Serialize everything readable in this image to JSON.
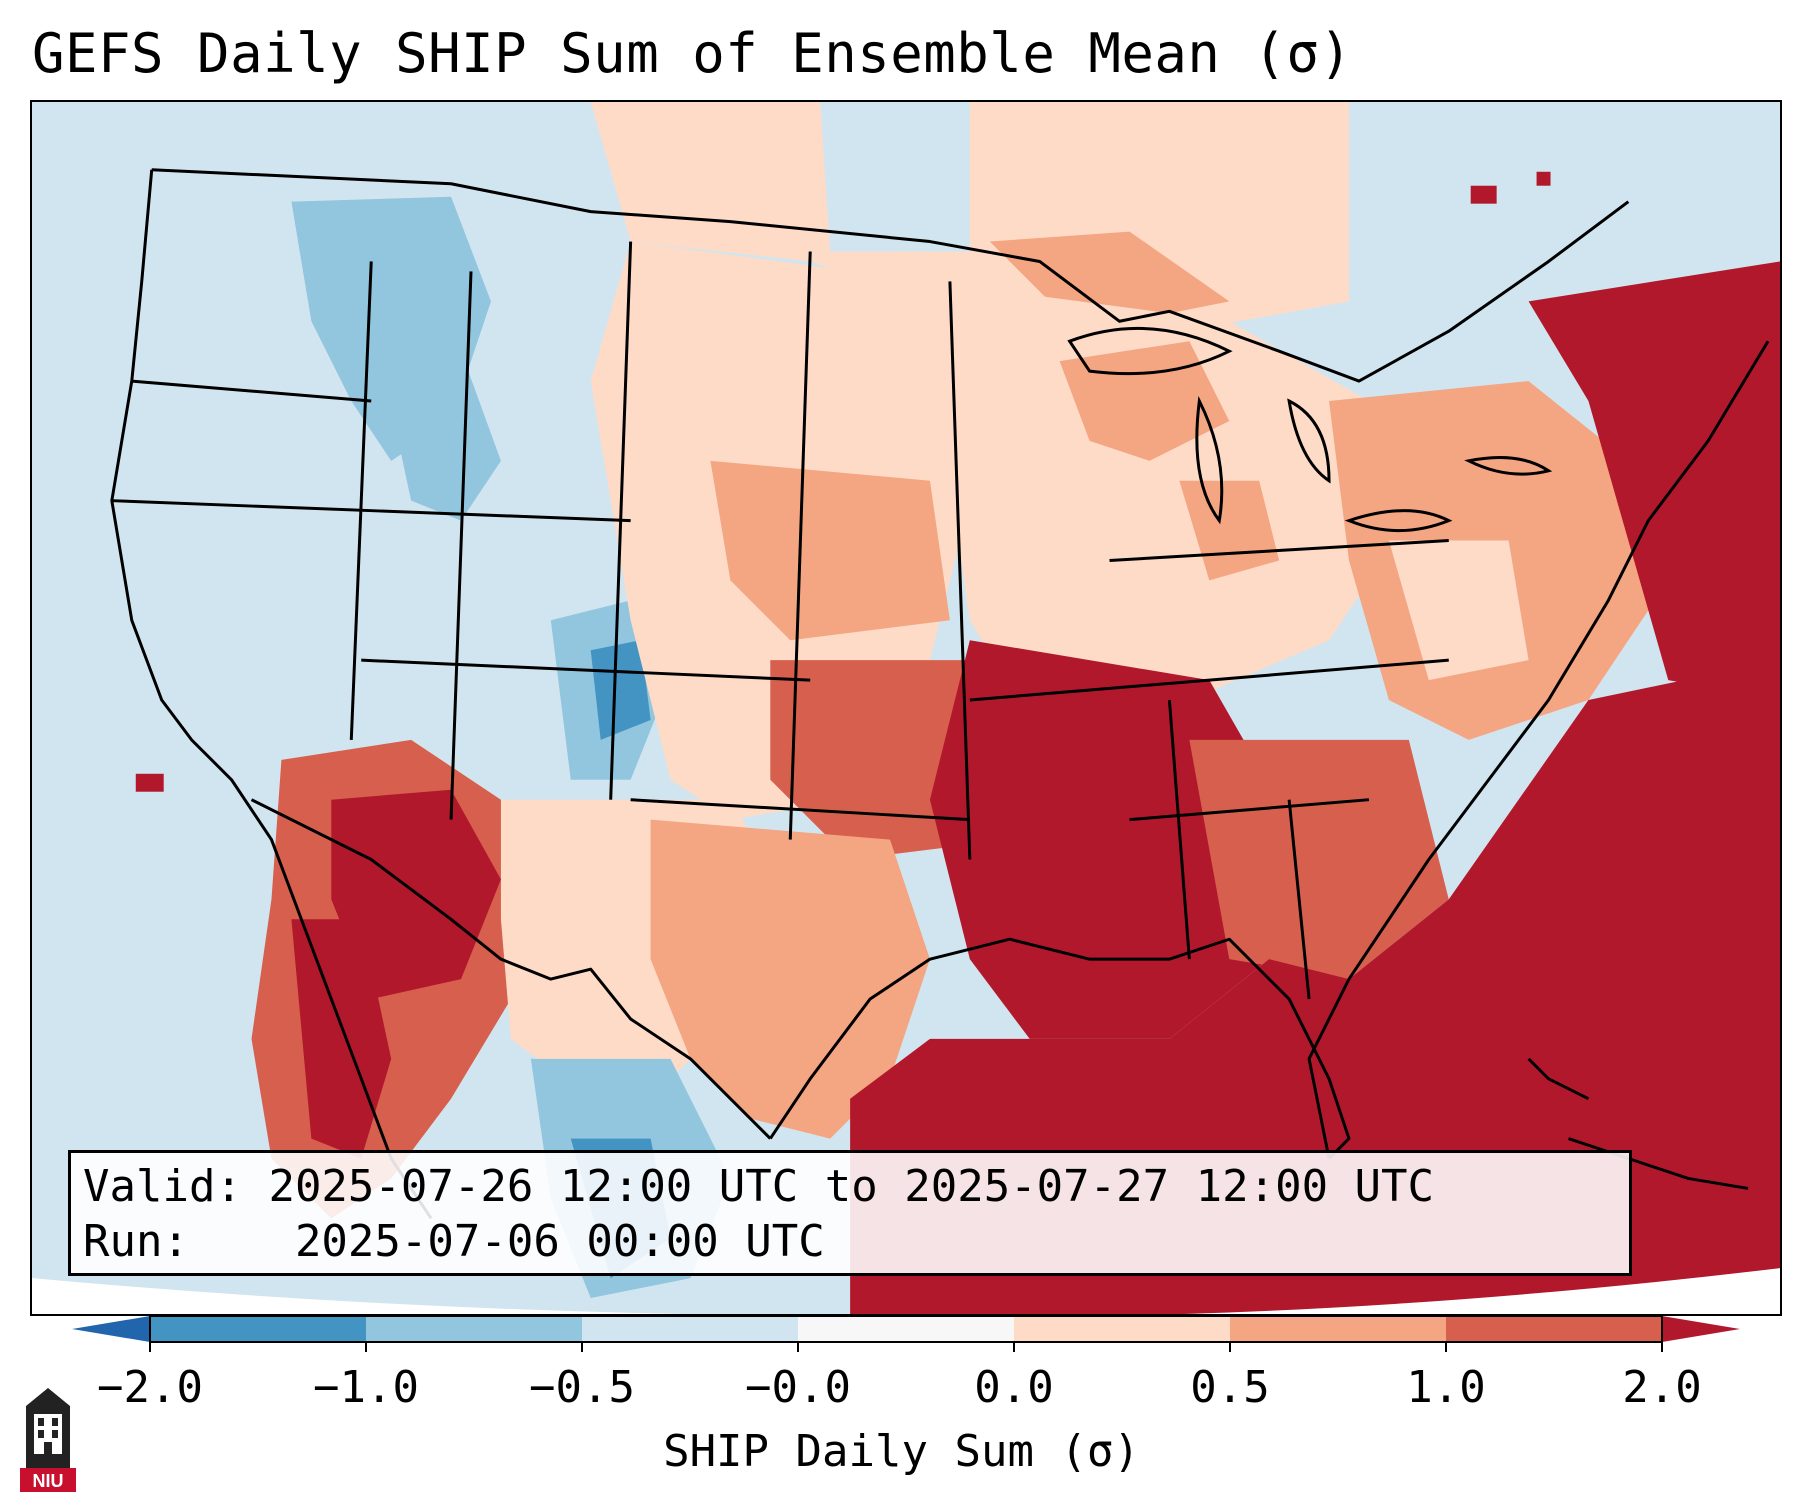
{
  "title": "GEFS Daily SHIP Sum of Ensemble Mean (σ)",
  "info": {
    "valid_label": "Valid:",
    "valid_text": "2025-07-26 12:00 UTC to 2025-07-27 12:00 UTC",
    "run_label": "Run:",
    "run_text": "2025-07-06 00:00 UTC"
  },
  "colorbar": {
    "label": "SHIP Daily Sum (σ)",
    "ticks": [
      "−2.0",
      "−1.0",
      "−0.5",
      "−0.0",
      "0.0",
      "0.5",
      "1.0",
      "2.0"
    ],
    "colors": {
      "below_min": "#2166ac",
      "bins": [
        "#4393c3",
        "#92c5de",
        "#d1e5f0",
        "#f7f7f7",
        "#fddbc7",
        "#f4a582",
        "#d6604d"
      ],
      "above_max": "#b2182b"
    }
  },
  "logo": {
    "text": "NIU",
    "color": "#c8102e",
    "icon": "university-tower-icon"
  }
}
